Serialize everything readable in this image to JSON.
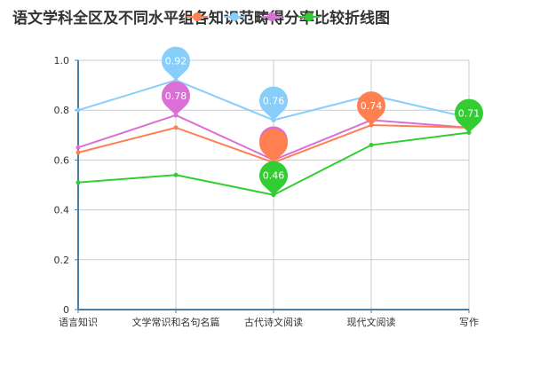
{
  "chart_data": {
    "type": "line",
    "title": "语文学科全区及不同水平组各知识范畴得分率比较折线图",
    "categories": [
      "语言知识",
      "文学常识和名句名篇",
      "古代诗文阅读",
      "现代文阅读",
      "写作"
    ],
    "ylim": [
      0,
      1.0
    ],
    "yticks": [
      "0",
      "0.2",
      "0.4",
      "0.6",
      "0.8",
      "1.0"
    ],
    "grid": true,
    "legend_position": "top",
    "series": [
      {
        "name": "",
        "color": "#87cefa",
        "values": [
          0.8,
          0.92,
          0.76,
          0.86,
          0.77
        ]
      },
      {
        "name": "",
        "color": "#da70d6",
        "values": [
          0.65,
          0.78,
          0.6,
          0.76,
          0.73
        ]
      },
      {
        "name": "",
        "color": "#ff7f50",
        "values": [
          0.63,
          0.73,
          0.59,
          0.74,
          0.73
        ]
      },
      {
        "name": "",
        "color": "#32cd32",
        "values": [
          0.51,
          0.54,
          0.46,
          0.66,
          0.71
        ]
      }
    ],
    "markers": [
      {
        "series": 0,
        "index": 1,
        "label": "0.92"
      },
      {
        "series": 0,
        "index": 2,
        "label": "0.76"
      },
      {
        "series": 1,
        "index": 1,
        "label": "0.78"
      },
      {
        "series": 1,
        "index": 2,
        "label": "0.6"
      },
      {
        "series": 2,
        "index": 2,
        "label": ""
      },
      {
        "series": 2,
        "index": 3,
        "label": "0.74"
      },
      {
        "series": 3,
        "index": 2,
        "label": "0.46"
      },
      {
        "series": 3,
        "index": 4,
        "label": "0.71"
      }
    ]
  }
}
